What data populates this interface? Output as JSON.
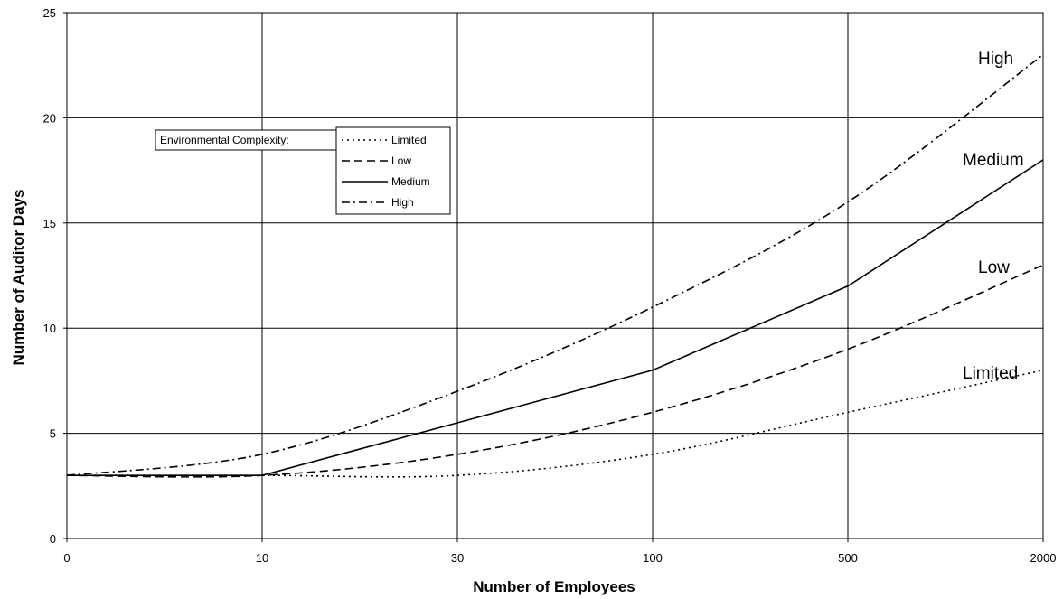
{
  "chart_data": {
    "type": "line",
    "xlabel": "Number of Employees",
    "ylabel": "Number of Auditor Days",
    "categories": [
      "0",
      "10",
      "30",
      "100",
      "500",
      "2000"
    ],
    "ylim": [
      0,
      25
    ],
    "yticks": [
      0,
      5,
      10,
      15,
      20,
      25
    ],
    "grid": true,
    "legend": {
      "title": "Environmental Complexity:",
      "placement": "upper-left"
    },
    "series": [
      {
        "name": "Limited",
        "style": "dotted",
        "values": [
          3,
          3,
          3,
          4,
          6,
          8
        ]
      },
      {
        "name": "Low",
        "style": "dashed",
        "values": [
          3,
          3,
          4,
          6,
          9,
          13
        ]
      },
      {
        "name": "Medium",
        "style": "solid",
        "values": [
          3,
          3,
          5.5,
          8,
          12,
          18
        ]
      },
      {
        "name": "High",
        "style": "dashdot",
        "values": [
          3,
          4,
          7,
          11,
          16,
          23
        ]
      }
    ],
    "end_labels": [
      "Limited",
      "Low",
      "Medium",
      "High"
    ]
  }
}
